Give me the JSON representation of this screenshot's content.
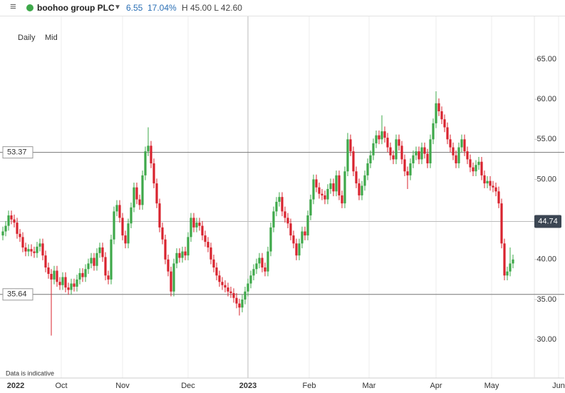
{
  "header": {
    "name": "boohoo group PLC",
    "change": "6.55",
    "change_pct": "17.04%",
    "high_low": "H 45.00 L 42.60"
  },
  "toolbar": [
    "Daily",
    "Mid"
  ],
  "chart_data": {
    "type": "candlestick",
    "note": "Data is indicative",
    "up_color": "#3ea84a",
    "down_color": "#d8232e",
    "xlim": [
      -1,
      197
    ],
    "xticks": [
      {
        "value": 4.5,
        "label": "2022"
      },
      {
        "value": 20.5,
        "label": "Oct"
      },
      {
        "value": 42,
        "label": "Nov"
      },
      {
        "value": 65,
        "label": "Dec"
      },
      {
        "value": 86,
        "label": "2023"
      },
      {
        "value": 107.5,
        "label": "Feb"
      },
      {
        "value": 128.5,
        "label": "Mar"
      },
      {
        "value": 152,
        "label": "Apr"
      },
      {
        "value": 171.5,
        "label": "May"
      },
      {
        "value": 195,
        "label": "Jun"
      }
    ],
    "ylim": [
      25.2,
      69.9
    ],
    "yticks": [
      {
        "value": 30,
        "label": "30.00"
      },
      {
        "value": 35,
        "label": "35.00"
      },
      {
        "value": 40,
        "label": "40.00"
      },
      {
        "value": 45,
        "label": "45.00"
      },
      {
        "value": 50,
        "label": "50.00"
      },
      {
        "value": 55,
        "label": "55.00"
      },
      {
        "value": 60,
        "label": "60.00"
      },
      {
        "value": 65,
        "label": "65.00"
      }
    ],
    "reference_lines": [
      53.37,
      35.64
    ],
    "last_price": 44.74,
    "open": [
      43.0,
      43.5,
      44.2,
      45.5,
      45.0,
      44.6,
      43.2,
      42.8,
      41.5,
      41.0,
      41.3,
      41.0,
      40.8,
      41.6,
      42.0,
      40.5,
      39.0,
      38.2,
      37.5,
      38.6,
      37.2,
      36.8,
      37.8,
      36.5,
      36.2,
      37.0,
      36.6,
      37.5,
      38.3,
      37.8,
      38.8,
      39.5,
      40.2,
      39.2,
      40.8,
      41.5,
      40.3,
      38.0,
      37.5,
      42.5,
      46.0,
      46.8,
      45.2,
      43.0,
      42.0,
      44.5,
      46.5,
      49.0,
      47.5,
      46.8,
      50.5,
      53.5,
      54.2,
      52.0,
      49.5,
      47.0,
      44.0,
      42.5,
      40.0,
      38.5,
      36.0,
      39.5,
      40.8,
      40.2,
      41.0,
      40.5,
      42.8,
      45.2,
      44.0,
      44.6,
      44.2,
      43.0,
      42.2,
      41.5,
      40.0,
      39.0,
      38.0,
      37.2,
      36.8,
      36.5,
      36.0,
      35.8,
      35.2,
      34.5,
      34.0,
      35.0,
      36.0,
      37.0,
      38.0,
      38.8,
      39.5,
      40.2,
      39.0,
      38.5,
      41.0,
      44.0,
      46.0,
      47.2,
      47.8,
      46.0,
      45.2,
      44.5,
      43.0,
      42.0,
      40.5,
      42.0,
      43.5,
      43.0,
      45.5,
      47.5,
      50.0,
      49.0,
      48.2,
      48.0,
      47.5,
      48.8,
      49.5,
      48.5,
      50.5,
      48.0,
      47.0,
      51.0,
      55.0,
      53.5,
      51.0,
      49.5,
      48.0,
      49.2,
      50.5,
      52.0,
      53.0,
      54.5,
      55.5,
      55.0,
      56.0,
      55.2,
      54.0,
      53.0,
      52.5,
      55.0,
      54.2,
      52.5,
      51.0,
      50.5,
      52.0,
      53.0,
      53.5,
      52.5,
      54.0,
      53.2,
      52.0,
      55.0,
      57.0,
      59.5,
      58.5,
      57.5,
      56.5,
      55.0,
      54.0,
      53.0,
      52.0,
      54.0,
      55.0,
      53.5,
      52.5,
      51.5,
      51.0,
      51.8,
      52.2,
      50.5,
      49.5,
      49.8,
      49.2,
      49.0,
      48.5,
      47.0,
      42.0,
      38.0,
      38.5,
      39.5
    ],
    "high": [
      44.1,
      44.8,
      46.1,
      46.1,
      45.6,
      45.2,
      43.8,
      43.4,
      42.1,
      41.9,
      41.9,
      41.6,
      42.2,
      42.6,
      42.6,
      41.1,
      39.6,
      38.8,
      39.2,
      39.2,
      37.8,
      38.4,
      38.4,
      37.1,
      37.6,
      37.6,
      38.1,
      38.9,
      38.9,
      39.4,
      40.1,
      40.8,
      40.8,
      41.4,
      42.1,
      42.1,
      40.9,
      38.6,
      43.1,
      46.6,
      47.4,
      47.4,
      45.8,
      43.6,
      45.1,
      47.1,
      49.6,
      49.6,
      48.1,
      51.1,
      54.1,
      56.5,
      54.8,
      52.6,
      50.1,
      47.6,
      44.6,
      43.1,
      40.6,
      39.1,
      40.1,
      41.4,
      41.4,
      41.6,
      41.6,
      43.4,
      45.8,
      45.8,
      45.2,
      45.2,
      44.8,
      43.6,
      42.8,
      42.1,
      40.6,
      39.6,
      38.6,
      37.8,
      37.4,
      37.1,
      36.6,
      36.4,
      35.8,
      35.1,
      35.6,
      36.6,
      37.6,
      38.6,
      39.4,
      40.1,
      40.8,
      40.8,
      39.6,
      41.6,
      44.6,
      46.6,
      47.8,
      48.4,
      48.4,
      46.6,
      45.8,
      45.1,
      43.6,
      42.6,
      42.6,
      44.1,
      44.1,
      46.1,
      48.1,
      50.6,
      50.6,
      49.6,
      48.8,
      48.6,
      49.4,
      50.1,
      50.1,
      51.1,
      51.1,
      48.6,
      51.6,
      55.8,
      55.6,
      54.1,
      51.6,
      50.1,
      49.8,
      51.1,
      52.6,
      53.6,
      55.1,
      56.1,
      56.1,
      58.0,
      56.6,
      55.8,
      54.6,
      53.6,
      55.6,
      55.6,
      54.8,
      53.1,
      51.6,
      52.6,
      53.6,
      54.1,
      54.1,
      54.6,
      54.6,
      53.8,
      55.6,
      57.6,
      61.0,
      60.1,
      59.1,
      58.1,
      57.1,
      55.6,
      54.6,
      53.6,
      54.6,
      55.6,
      55.6,
      54.1,
      53.1,
      52.1,
      52.4,
      52.8,
      52.8,
      51.1,
      50.4,
      50.4,
      49.8,
      49.6,
      49.1,
      47.6,
      42.6,
      39.1,
      41.5,
      40.6
    ],
    "low": [
      42.4,
      42.9,
      43.6,
      44.4,
      44.0,
      42.6,
      42.2,
      40.9,
      40.4,
      40.4,
      40.4,
      40.2,
      40.2,
      41.0,
      39.9,
      38.4,
      37.6,
      30.5,
      36.9,
      36.6,
      36.2,
      36.2,
      35.9,
      35.6,
      35.6,
      36.0,
      36.0,
      36.9,
      37.2,
      37.2,
      38.2,
      38.9,
      38.6,
      38.6,
      40.2,
      39.7,
      37.4,
      36.9,
      36.9,
      41.9,
      45.4,
      44.6,
      42.4,
      41.4,
      41.4,
      43.9,
      45.9,
      46.9,
      46.2,
      46.2,
      49.9,
      52.9,
      51.4,
      48.9,
      46.4,
      43.4,
      41.9,
      39.4,
      37.9,
      35.4,
      35.4,
      38.9,
      39.6,
      39.6,
      39.9,
      39.9,
      42.2,
      43.4,
      43.4,
      43.6,
      42.4,
      41.6,
      40.9,
      39.4,
      38.4,
      37.4,
      36.6,
      36.2,
      35.9,
      35.4,
      35.2,
      34.6,
      33.9,
      33.0,
      33.4,
      34.4,
      35.4,
      36.4,
      37.4,
      38.2,
      38.9,
      38.4,
      37.9,
      37.9,
      40.4,
      43.4,
      45.4,
      46.6,
      45.4,
      44.6,
      43.9,
      42.4,
      41.4,
      39.9,
      39.9,
      41.4,
      42.4,
      42.4,
      44.9,
      46.9,
      48.4,
      47.6,
      47.4,
      46.9,
      46.9,
      48.2,
      47.9,
      47.9,
      47.4,
      46.4,
      46.4,
      50.4,
      52.9,
      50.4,
      48.9,
      47.4,
      47.4,
      48.6,
      49.9,
      51.4,
      52.4,
      53.9,
      54.4,
      54.4,
      54.6,
      53.4,
      52.4,
      51.9,
      51.9,
      53.6,
      51.9,
      50.4,
      48.8,
      49.9,
      51.4,
      52.4,
      51.9,
      51.9,
      52.6,
      51.4,
      51.4,
      54.4,
      56.4,
      57.9,
      56.9,
      55.9,
      54.4,
      53.4,
      52.4,
      51.4,
      51.4,
      53.4,
      52.9,
      51.9,
      50.9,
      50.4,
      50.4,
      51.2,
      49.9,
      48.9,
      48.9,
      48.6,
      48.4,
      47.9,
      46.4,
      41.4,
      37.4,
      37.4,
      37.9,
      38.9
    ],
    "close": [
      43.5,
      44.2,
      45.5,
      45.0,
      44.6,
      43.2,
      42.8,
      41.5,
      41.0,
      41.3,
      41.0,
      40.8,
      41.6,
      42.0,
      40.5,
      39.0,
      38.2,
      37.5,
      38.6,
      37.2,
      36.8,
      37.8,
      36.5,
      36.2,
      37.0,
      36.6,
      37.5,
      38.3,
      37.8,
      38.8,
      39.5,
      40.2,
      39.2,
      40.8,
      41.5,
      40.3,
      38.0,
      37.5,
      42.5,
      46.0,
      46.8,
      45.2,
      43.0,
      42.0,
      44.5,
      46.5,
      49.0,
      47.5,
      46.8,
      50.5,
      53.5,
      54.2,
      52.0,
      49.5,
      47.0,
      44.0,
      42.5,
      40.0,
      38.5,
      36.0,
      39.5,
      40.8,
      40.2,
      41.0,
      40.5,
      42.8,
      45.2,
      44.0,
      44.6,
      44.2,
      43.0,
      42.2,
      41.5,
      40.0,
      39.0,
      38.0,
      37.2,
      36.8,
      36.5,
      36.0,
      35.8,
      35.2,
      34.5,
      34.0,
      35.0,
      36.0,
      37.0,
      38.0,
      38.8,
      39.5,
      40.2,
      39.0,
      38.5,
      41.0,
      44.0,
      46.0,
      47.2,
      47.8,
      46.0,
      45.2,
      44.5,
      43.0,
      42.0,
      40.5,
      42.0,
      43.5,
      43.0,
      45.5,
      47.5,
      50.0,
      49.0,
      48.2,
      48.0,
      47.5,
      48.8,
      49.5,
      48.5,
      50.5,
      48.0,
      47.0,
      51.0,
      55.0,
      53.5,
      51.0,
      49.5,
      48.0,
      49.2,
      50.5,
      52.0,
      53.0,
      54.5,
      55.5,
      55.0,
      56.0,
      55.2,
      54.0,
      53.0,
      52.5,
      55.0,
      54.2,
      52.5,
      51.0,
      50.5,
      52.0,
      53.0,
      53.5,
      52.5,
      54.0,
      53.2,
      52.0,
      55.0,
      57.0,
      59.5,
      58.5,
      57.5,
      56.5,
      55.0,
      54.0,
      53.0,
      52.0,
      54.0,
      55.0,
      53.5,
      52.5,
      51.5,
      51.0,
      51.8,
      52.2,
      50.5,
      49.5,
      49.8,
      49.2,
      49.0,
      48.5,
      47.0,
      42.0,
      38.0,
      38.5,
      39.5,
      40.0
    ]
  }
}
